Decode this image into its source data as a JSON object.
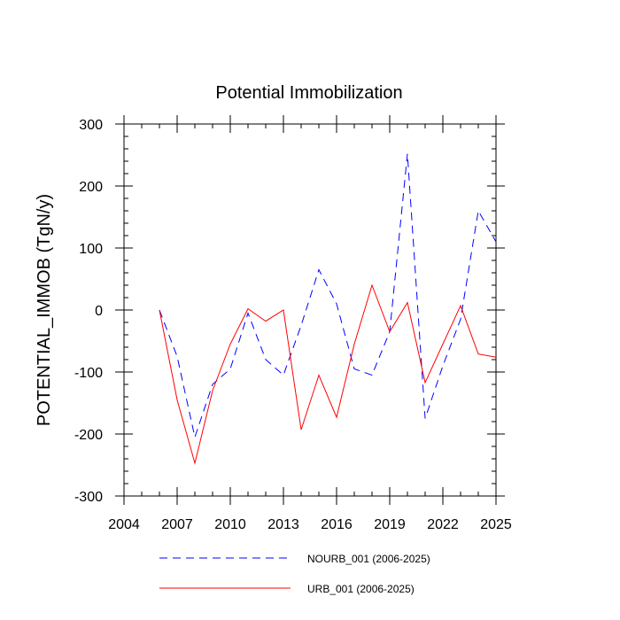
{
  "chart_data": {
    "type": "line",
    "title": "Potential Immobilization",
    "xlabel": "",
    "ylabel": "POTENTIAL_IMMOB  (TgN/y)",
    "xlim": [
      2004,
      2025
    ],
    "ylim": [
      -300,
      300
    ],
    "x_ticks": [
      2004,
      2007,
      2010,
      2013,
      2016,
      2019,
      2022,
      2025
    ],
    "x_tick_labels": [
      "2004",
      "2007",
      "2010",
      "2013",
      "2016",
      "2019",
      "2022",
      "2025"
    ],
    "y_ticks": [
      -300,
      -200,
      -100,
      0,
      100,
      200,
      300
    ],
    "y_tick_labels": [
      "-300",
      "-200",
      "-100",
      "0",
      "100",
      "200",
      "300"
    ],
    "x": [
      2006,
      2007,
      2008,
      2009,
      2010,
      2011,
      2012,
      2013,
      2014,
      2015,
      2016,
      2017,
      2018,
      2019,
      2020,
      2021,
      2022,
      2023,
      2024,
      2025
    ],
    "series": [
      {
        "name": "NOURB_001 (2006-2025)",
        "color": "#0000ff",
        "style": "dashed",
        "values": [
          0,
          -75,
          -205,
          -120,
          -95,
          -5,
          -80,
          -105,
          -25,
          65,
          10,
          -95,
          -105,
          -35,
          252,
          -175,
          -90,
          -15,
          160,
          110
        ]
      },
      {
        "name": "URB_001 (2006-2025)",
        "color": "#ff0000",
        "style": "solid",
        "values": [
          0,
          -145,
          -247,
          -130,
          -55,
          2,
          -18,
          0,
          -193,
          -105,
          -173,
          -55,
          40,
          -35,
          12,
          -117,
          -55,
          7,
          -71,
          -76
        ]
      }
    ],
    "legend": {
      "position": "bottom",
      "entries": [
        "NOURB_001 (2006-2025)",
        "URB_001 (2006-2025)"
      ]
    }
  }
}
